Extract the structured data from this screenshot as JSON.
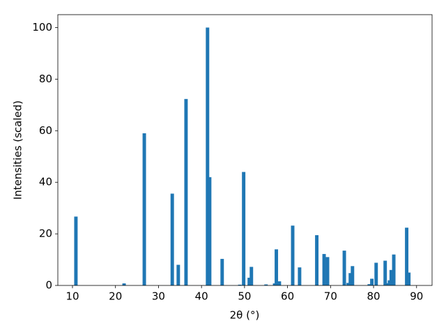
{
  "chart_data": {
    "type": "bar",
    "xlabel": "2θ (°)",
    "ylabel": "Intensities (scaled)",
    "color": "#1f77b4",
    "x": [
      10.8,
      22.0,
      26.7,
      33.2,
      34.6,
      36.4,
      41.4,
      41.9,
      44.8,
      48.9,
      49.8,
      51.1,
      51.6,
      55.0,
      57.0,
      57.4,
      58.1,
      61.2,
      62.8,
      66.8,
      68.5,
      69.3,
      73.2,
      74.1,
      74.6,
      75.1,
      79.0,
      79.6,
      80.6,
      82.7,
      83.4,
      83.7,
      84.1,
      84.7,
      87.7,
      88.2
    ],
    "values": [
      26.7,
      0.8,
      59,
      35.6,
      8,
      72.3,
      100,
      42,
      10.3,
      0.3,
      44,
      3,
      7.2,
      0.4,
      0.8,
      14,
      1.6,
      23.2,
      7,
      19.5,
      12.2,
      11,
      13.5,
      1,
      4.8,
      7.5,
      0.5,
      2.6,
      8.8,
      9.6,
      0.9,
      2,
      6,
      12,
      22.4,
      5
    ],
    "xlim": [
      6.6,
      93.6
    ],
    "xticks": [
      10,
      20,
      30,
      40,
      50,
      60,
      70,
      80,
      90
    ],
    "ylim": [
      0,
      105
    ],
    "yticks": [
      0,
      20,
      40,
      60,
      80,
      100
    ],
    "grid": false
  }
}
